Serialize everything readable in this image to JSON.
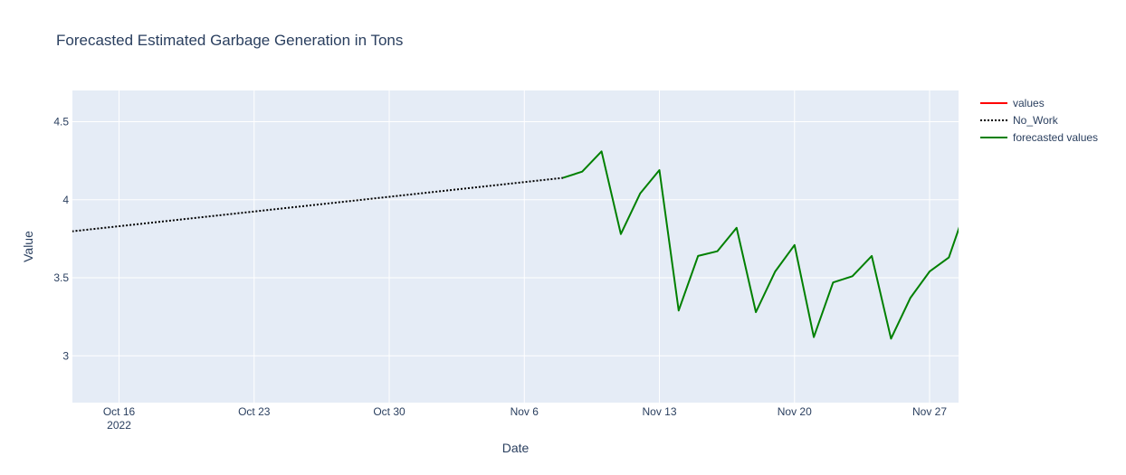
{
  "chart_data": {
    "type": "line",
    "title": "Forecasted Estimated Garbage Generation in Tons",
    "xlabel": "Date",
    "ylabel": "Value",
    "xlim": [
      "2022-10-13T14:00",
      "2022-11-28T12:00"
    ],
    "ylim": [
      2.7,
      4.7
    ],
    "y_ticks": [
      3,
      3.5,
      4,
      4.5
    ],
    "y_tick_labels": [
      "3",
      "3.5",
      "4",
      "4.5"
    ],
    "x_ticks": [
      "2022-10-16",
      "2022-10-23",
      "2022-10-30",
      "2022-11-06",
      "2022-11-13",
      "2022-11-20",
      "2022-11-27"
    ],
    "x_tick_labels": [
      "Oct 16",
      "Oct 23",
      "Oct 30",
      "Nov 6",
      "Nov 13",
      "Nov 20",
      "Nov 27"
    ],
    "x_tick_sublabel": "2022",
    "grid": true,
    "background": "#e5ecf6",
    "legend_position": "top-right",
    "series": [
      {
        "name": "values",
        "color": "#ff0000",
        "dash": "solid",
        "points": []
      },
      {
        "name": "No_Work",
        "color": "#000000",
        "dash": "dot",
        "points": [
          {
            "x": "2022-10-13",
            "y": 3.79
          },
          {
            "x": "2022-11-08",
            "y": 4.14
          }
        ]
      },
      {
        "name": "forecasted values",
        "color": "#008000",
        "dash": "solid",
        "points": [
          {
            "x": "2022-11-08",
            "y": 4.14
          },
          {
            "x": "2022-11-09",
            "y": 4.18
          },
          {
            "x": "2022-11-10",
            "y": 4.31
          },
          {
            "x": "2022-11-11",
            "y": 3.78
          },
          {
            "x": "2022-11-12",
            "y": 4.04
          },
          {
            "x": "2022-11-13",
            "y": 4.19
          },
          {
            "x": "2022-11-14",
            "y": 3.29
          },
          {
            "x": "2022-11-15",
            "y": 3.64
          },
          {
            "x": "2022-11-16",
            "y": 3.67
          },
          {
            "x": "2022-11-17",
            "y": 3.82
          },
          {
            "x": "2022-11-18",
            "y": 3.28
          },
          {
            "x": "2022-11-19",
            "y": 3.54
          },
          {
            "x": "2022-11-20",
            "y": 3.71
          },
          {
            "x": "2022-11-21",
            "y": 3.12
          },
          {
            "x": "2022-11-22",
            "y": 3.47
          },
          {
            "x": "2022-11-23",
            "y": 3.51
          },
          {
            "x": "2022-11-24",
            "y": 3.64
          },
          {
            "x": "2022-11-25",
            "y": 3.11
          },
          {
            "x": "2022-11-26",
            "y": 3.37
          },
          {
            "x": "2022-11-27",
            "y": 3.54
          },
          {
            "x": "2022-11-28",
            "y": 3.63
          },
          {
            "x": "2022-11-29",
            "y": 3.99
          }
        ]
      }
    ]
  }
}
